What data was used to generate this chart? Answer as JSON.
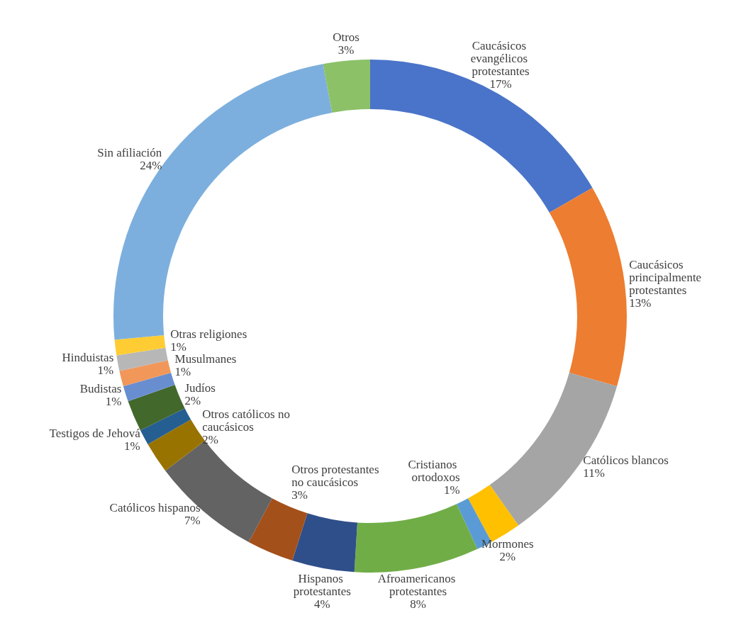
{
  "chart_data": {
    "type": "donut",
    "categories": [
      "Caucásicos evangélicos protestantes",
      "Caucásicos principalmente protestantes",
      "Católicos blancos",
      "Mormones",
      "Cristianos ortodoxos",
      "Afroamericanos protestantes",
      "Hispanos protestantes",
      "Otros protestantes no caucásicos",
      "Católicos hispanos",
      "Otros católicos no caucásicos",
      "Testigos de Jehová",
      "Judíos",
      "Budistas",
      "Musulmanes",
      "Hinduistas",
      "Otras religiones",
      "Sin afiliación",
      "Otros"
    ],
    "values": [
      17,
      13,
      11,
      2,
      1,
      8,
      4,
      3,
      7,
      2,
      1,
      2,
      1,
      1,
      1,
      1,
      24,
      3
    ],
    "value_labels": [
      "17%",
      "13%",
      "11%",
      "2%",
      "1%",
      "8%",
      "4%",
      "3%",
      "7%",
      "2%",
      "1%",
      "2%",
      "1%",
      "1%",
      "1%",
      "1%",
      "24%",
      "3%"
    ],
    "colors": [
      "#4a74c9",
      "#ed7d31",
      "#a5a5a5",
      "#ffc000",
      "#5b9bd5",
      "#70ad47",
      "#2f4f8a",
      "#a4501a",
      "#636363",
      "#997300",
      "#255e91",
      "#43682b",
      "#698ed0",
      "#f1975a",
      "#b7b7b7",
      "#ffcd33",
      "#7cafdd",
      "#8cc168"
    ],
    "legend": false
  }
}
